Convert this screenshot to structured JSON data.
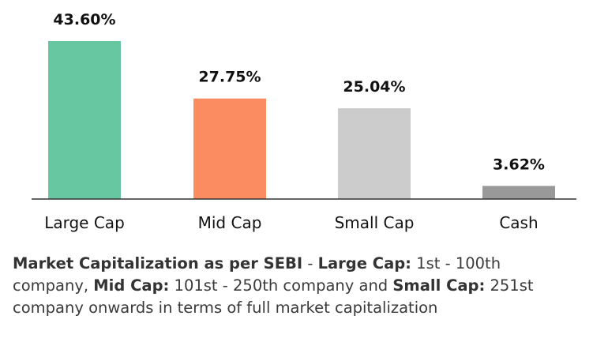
{
  "chart_data": {
    "type": "bar",
    "categories": [
      "Large Cap",
      "Mid Cap",
      "Small Cap",
      "Cash"
    ],
    "values": [
      43.6,
      27.75,
      25.04,
      3.62
    ],
    "value_labels": [
      "43.60%",
      "27.75%",
      "25.04%",
      "3.62%"
    ],
    "colors": [
      "#66c7a0",
      "#fb8c62",
      "#cccccc",
      "#999999"
    ],
    "ylim": [
      0,
      43.6
    ],
    "grid": false,
    "title": "",
    "xlabel": "",
    "ylabel": ""
  },
  "footnote": {
    "b1": "Market Capitalization as per SEBI",
    "t1": " - ",
    "b2": "Large Cap:",
    "t2": " 1st - 100th company, ",
    "b3": "Mid Cap:",
    "t3": " 101st - 250th company and ",
    "b4": "Small Cap:",
    "t4": " 251st company onwards in terms of full market capitalization"
  }
}
